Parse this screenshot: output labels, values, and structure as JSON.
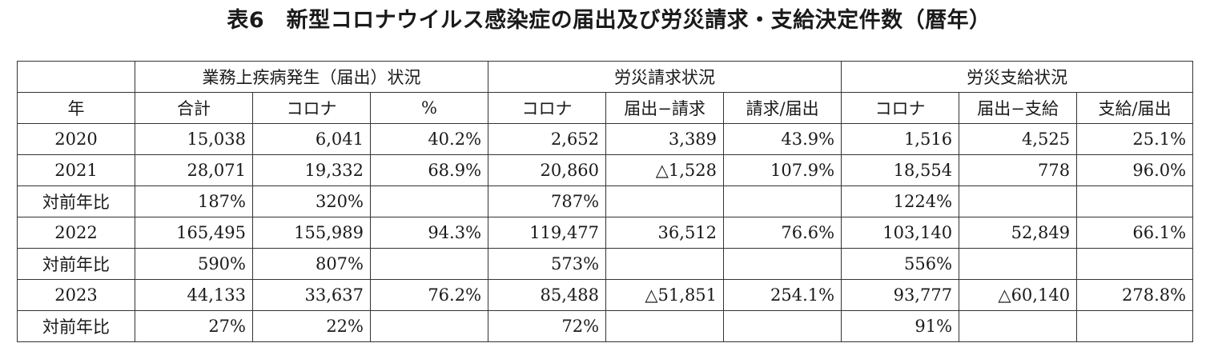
{
  "title": "表6　新型コロナウイルス感染症の届出及び労災請求・支給決定件数（暦年）",
  "groups": {
    "blank": "",
    "g1": "業務上疾病発生（届出）状況",
    "g2": "労災請求状況",
    "g3": "労災支給状況"
  },
  "headers": [
    "年",
    "合計",
    "コロナ",
    "%",
    "コロナ",
    "届出−請求",
    "請求/届出",
    "コロナ",
    "届出−支給",
    "支給/届出"
  ],
  "rows": [
    [
      "2020",
      "15,038",
      "6,041",
      "40.2%",
      "2,652",
      "3,389",
      "43.9%",
      "1,516",
      "4,525",
      "25.1%"
    ],
    [
      "2021",
      "28,071",
      "19,332",
      "68.9%",
      "20,860",
      "△1,528",
      "107.9%",
      "18,554",
      "778",
      "96.0%"
    ],
    [
      "対前年比",
      "187%",
      "320%",
      "",
      "787%",
      "",
      "",
      "1224%",
      "",
      ""
    ],
    [
      "2022",
      "165,495",
      "155,989",
      "94.3%",
      "119,477",
      "36,512",
      "76.6%",
      "103,140",
      "52,849",
      "66.1%"
    ],
    [
      "対前年比",
      "590%",
      "807%",
      "",
      "573%",
      "",
      "",
      "556%",
      "",
      ""
    ],
    [
      "2023",
      "44,133",
      "33,637",
      "76.2%",
      "85,488",
      "△51,851",
      "254.1%",
      "93,777",
      "△60,140",
      "278.8%"
    ],
    [
      "対前年比",
      "27%",
      "22%",
      "",
      "72%",
      "",
      "",
      "91%",
      "",
      ""
    ]
  ]
}
